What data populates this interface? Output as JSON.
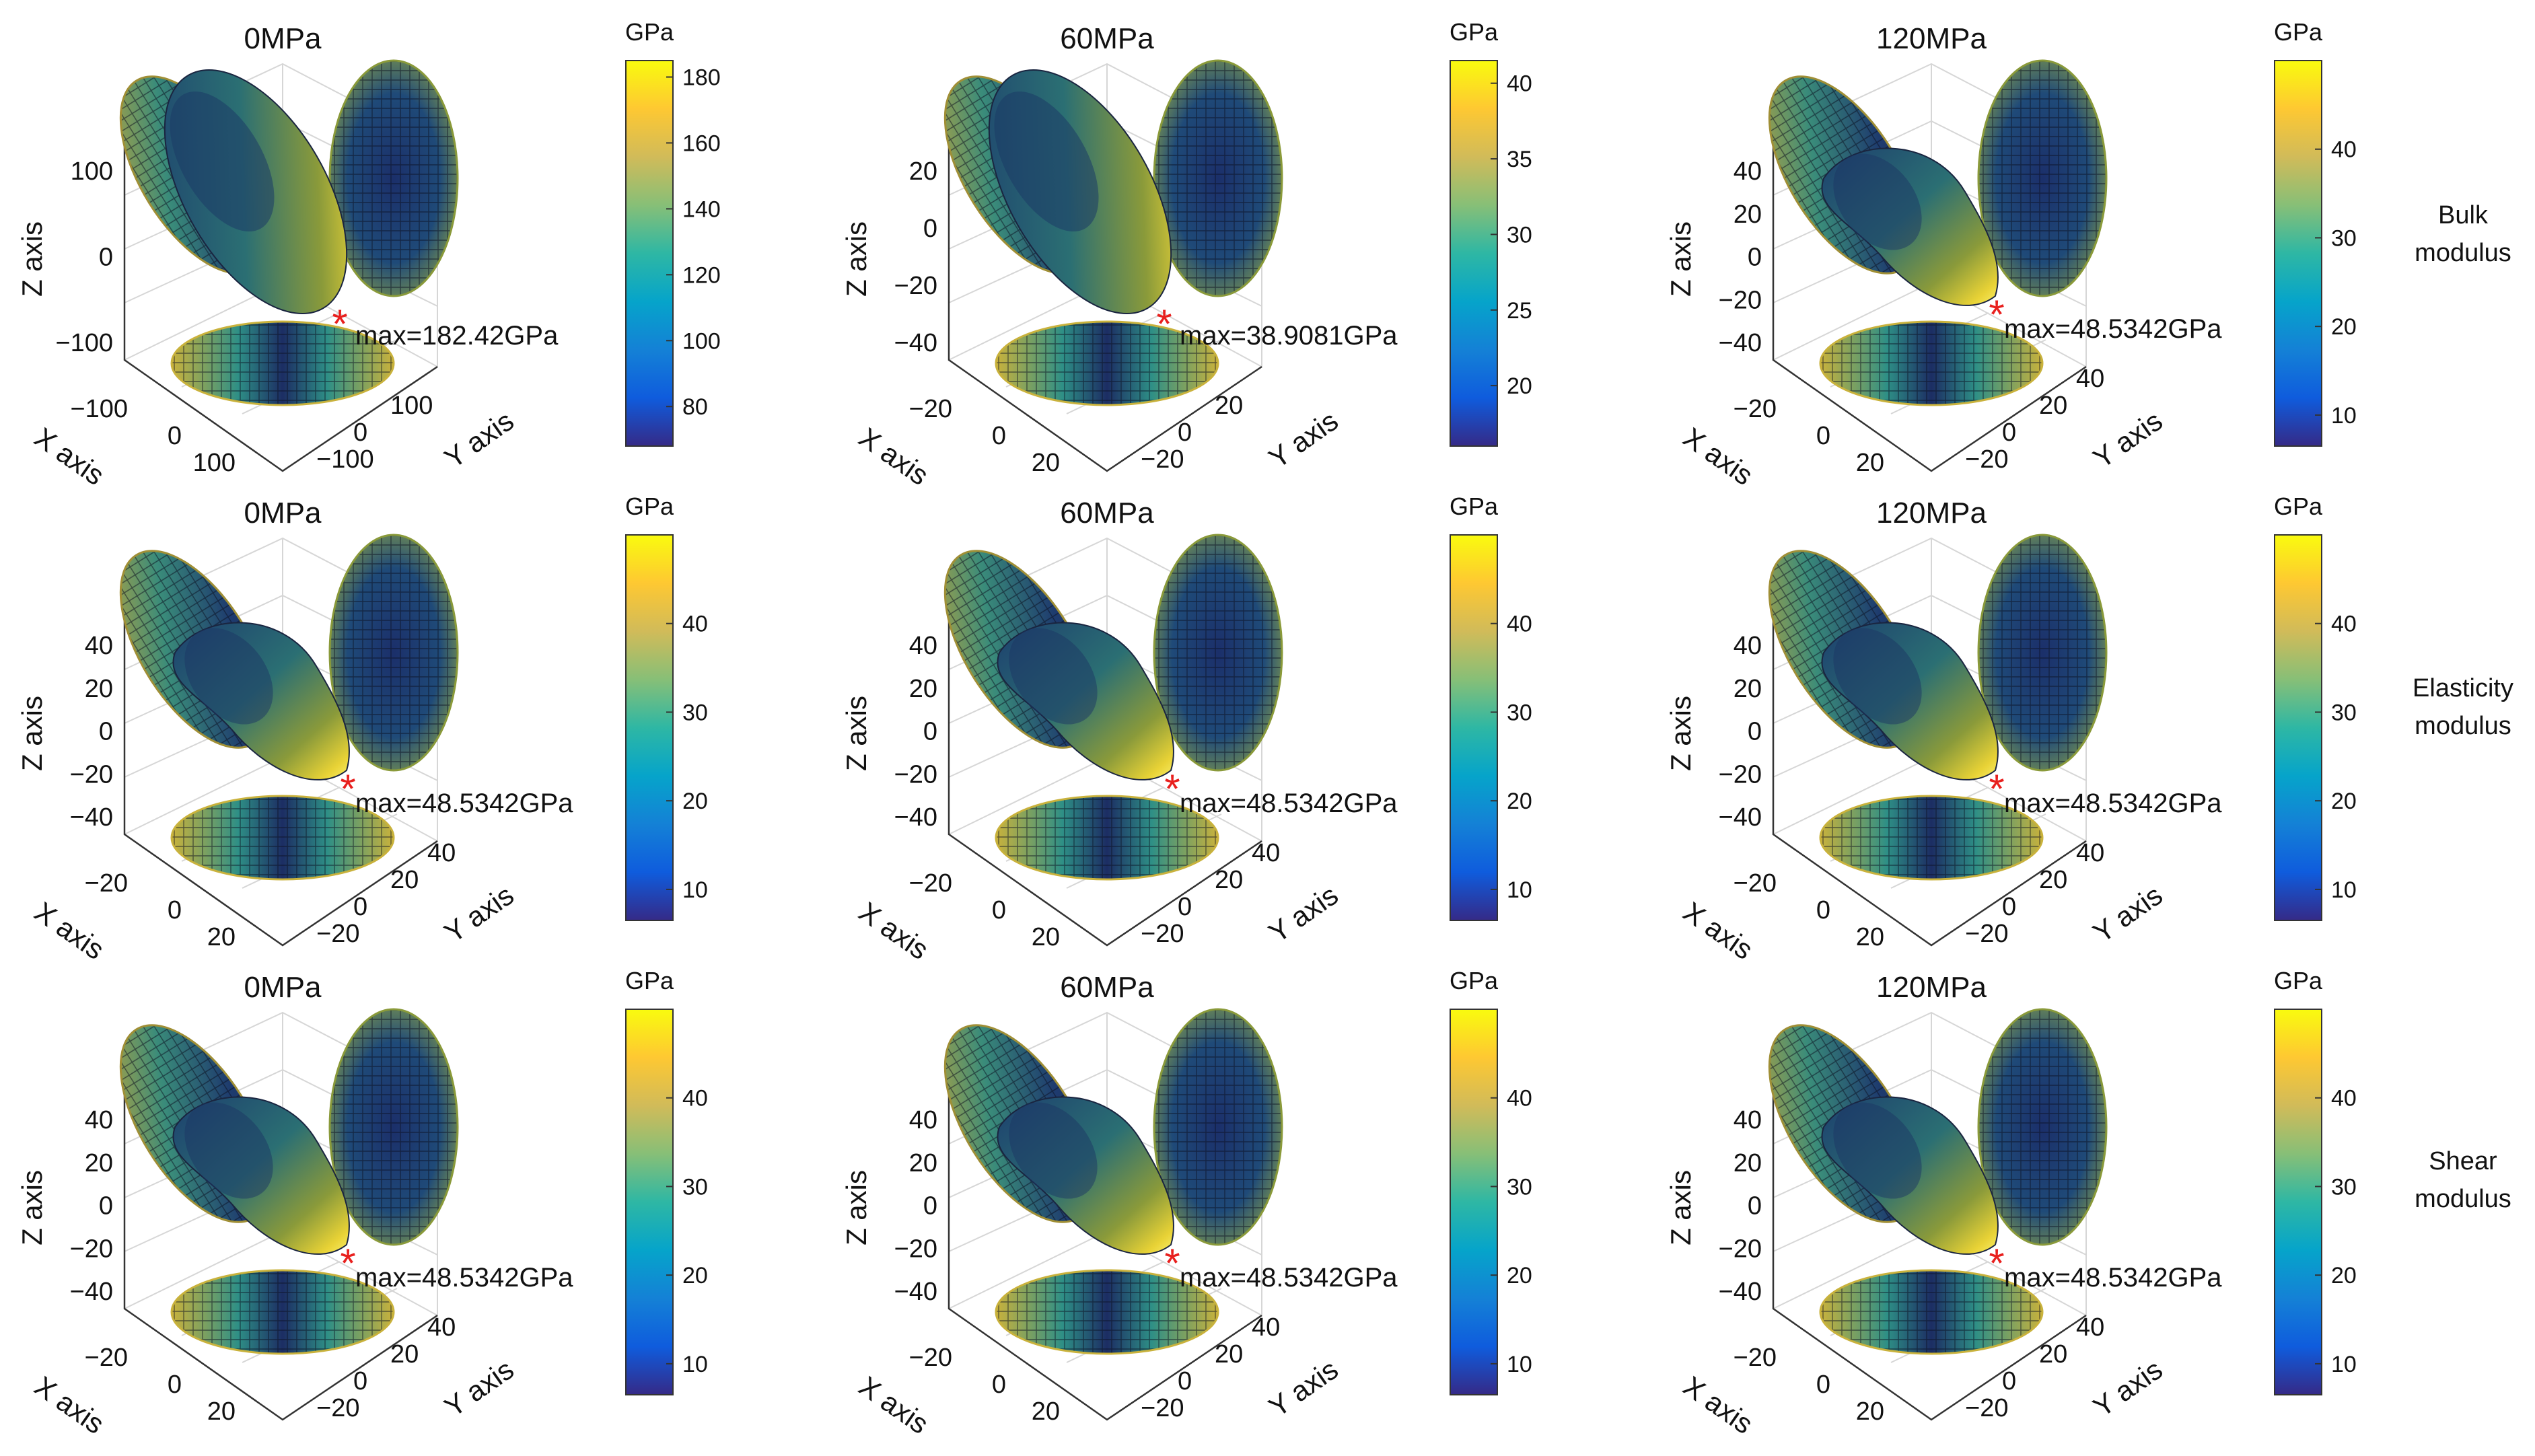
{
  "figure": {
    "colors": {
      "parula": [
        "#352a87",
        "#0f5cdd",
        "#1481d6",
        "#06a4ca",
        "#2eb7a4",
        "#87bf77",
        "#d1bb59",
        "#fec832",
        "#f9fb0e"
      ],
      "marker": "#e8201e"
    }
  },
  "row_labels": [
    {
      "line1": "Bulk",
      "line2": "modulus"
    },
    {
      "line1": "Elasticity",
      "line2": "modulus"
    },
    {
      "line1": "Shear",
      "line2": "modulus"
    }
  ],
  "chart_data": [
    {
      "type": "surface3d",
      "title": "0MPa",
      "modulus": "Bulk modulus",
      "max_label": "max=182.42GPa",
      "max_value": 182.42,
      "unit": "GPa",
      "xlabel": "X axis",
      "ylabel": "Y axis",
      "zlabel": "Z axis",
      "zticks": [
        "100",
        "0",
        "−100"
      ],
      "xticks": [
        "−100",
        "0",
        "100"
      ],
      "yticks": [
        "−100",
        "0",
        "100"
      ],
      "colorbar": {
        "range": [
          68,
          185
        ],
        "ticks": [
          80,
          100,
          120,
          140,
          160,
          180
        ]
      }
    },
    {
      "type": "surface3d",
      "title": "60MPa",
      "modulus": "Bulk modulus",
      "max_label": "max=38.9081GPa",
      "max_value": 38.9081,
      "unit": "GPa",
      "xlabel": "X axis",
      "ylabel": "Y axis",
      "zlabel": "Z axis",
      "zticks": [
        "20",
        "0",
        "−20",
        "−40"
      ],
      "xticks": [
        "−20",
        "0",
        "20"
      ],
      "yticks": [
        "−20",
        "0",
        "20"
      ],
      "colorbar": {
        "range": [
          16,
          41.5
        ],
        "ticks": [
          20,
          25,
          30,
          35,
          40
        ]
      }
    },
    {
      "type": "surface3d",
      "title": "120MPa",
      "modulus": "Bulk modulus",
      "max_label": "max=48.5342GPa",
      "max_value": 48.5342,
      "unit": "GPa",
      "xlabel": "X axis",
      "ylabel": "Y axis",
      "zlabel": "Z axis",
      "zticks": [
        "40",
        "20",
        "0",
        "−20",
        "−40"
      ],
      "xticks": [
        "−20",
        "0",
        "20"
      ],
      "yticks": [
        "−20",
        "0",
        "20",
        "40"
      ],
      "colorbar": {
        "range": [
          6.5,
          50
        ],
        "ticks": [
          10,
          20,
          30,
          40
        ]
      }
    },
    {
      "type": "surface3d",
      "title": "0MPa",
      "modulus": "Elasticity modulus",
      "max_label": "max=48.5342GPa",
      "max_value": 48.5342,
      "unit": "GPa",
      "xlabel": "X axis",
      "ylabel": "Y axis",
      "zlabel": "Z axis",
      "zticks": [
        "40",
        "20",
        "0",
        "−20",
        "−40"
      ],
      "xticks": [
        "−20",
        "0",
        "20"
      ],
      "yticks": [
        "−20",
        "0",
        "20",
        "40"
      ],
      "colorbar": {
        "range": [
          6.5,
          50
        ],
        "ticks": [
          10,
          20,
          30,
          40
        ]
      }
    },
    {
      "type": "surface3d",
      "title": "60MPa",
      "modulus": "Elasticity modulus",
      "max_label": "max=48.5342GPa",
      "max_value": 48.5342,
      "unit": "GPa",
      "xlabel": "X axis",
      "ylabel": "Y axis",
      "zlabel": "Z axis",
      "zticks": [
        "40",
        "20",
        "0",
        "−20",
        "−40"
      ],
      "xticks": [
        "−20",
        "0",
        "20"
      ],
      "yticks": [
        "−20",
        "0",
        "20",
        "40"
      ],
      "colorbar": {
        "range": [
          6.5,
          50
        ],
        "ticks": [
          10,
          20,
          30,
          40
        ]
      }
    },
    {
      "type": "surface3d",
      "title": "120MPa",
      "modulus": "Elasticity modulus",
      "max_label": "max=48.5342GPa",
      "max_value": 48.5342,
      "unit": "GPa",
      "xlabel": "X axis",
      "ylabel": "Y axis",
      "zlabel": "Z axis",
      "zticks": [
        "40",
        "20",
        "0",
        "−20",
        "−40"
      ],
      "xticks": [
        "−20",
        "0",
        "20"
      ],
      "yticks": [
        "−20",
        "0",
        "20",
        "40"
      ],
      "colorbar": {
        "range": [
          6.5,
          50
        ],
        "ticks": [
          10,
          20,
          30,
          40
        ]
      }
    },
    {
      "type": "surface3d",
      "title": "0MPa",
      "modulus": "Shear modulus",
      "max_label": "max=48.5342GPa",
      "max_value": 48.5342,
      "unit": "GPa",
      "xlabel": "X axis",
      "ylabel": "Y axis",
      "zlabel": "Z axis",
      "zticks": [
        "40",
        "20",
        "0",
        "−20",
        "−40"
      ],
      "xticks": [
        "−20",
        "0",
        "20"
      ],
      "yticks": [
        "−20",
        "0",
        "20",
        "40"
      ],
      "colorbar": {
        "range": [
          6.5,
          50
        ],
        "ticks": [
          10,
          20,
          30,
          40
        ]
      }
    },
    {
      "type": "surface3d",
      "title": "60MPa",
      "modulus": "Shear modulus",
      "max_label": "max=48.5342GPa",
      "max_value": 48.5342,
      "unit": "GPa",
      "xlabel": "X axis",
      "ylabel": "Y axis",
      "zlabel": "Z axis",
      "zticks": [
        "40",
        "20",
        "0",
        "−20",
        "−40"
      ],
      "xticks": [
        "−20",
        "0",
        "20"
      ],
      "yticks": [
        "−20",
        "0",
        "20",
        "40"
      ],
      "colorbar": {
        "range": [
          6.5,
          50
        ],
        "ticks": [
          10,
          20,
          30,
          40
        ]
      }
    },
    {
      "type": "surface3d",
      "title": "120MPa",
      "modulus": "Shear modulus",
      "max_label": "max=48.5342GPa",
      "max_value": 48.5342,
      "unit": "GPa",
      "xlabel": "X axis",
      "ylabel": "Y axis",
      "zlabel": "Z axis",
      "zticks": [
        "40",
        "20",
        "0",
        "−20",
        "−40"
      ],
      "xticks": [
        "−20",
        "0",
        "20"
      ],
      "yticks": [
        "−20",
        "0",
        "20",
        "40"
      ],
      "colorbar": {
        "range": [
          6.5,
          50
        ],
        "ticks": [
          10,
          20,
          30,
          40
        ]
      }
    }
  ]
}
